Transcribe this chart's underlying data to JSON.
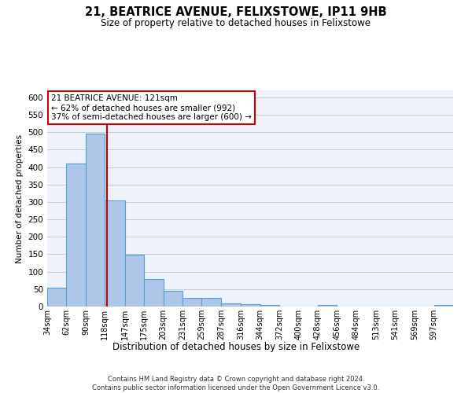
{
  "title": "21, BEATRICE AVENUE, FELIXSTOWE, IP11 9HB",
  "subtitle": "Size of property relative to detached houses in Felixstowe",
  "xlabel": "Distribution of detached houses by size in Felixstowe",
  "ylabel": "Number of detached properties",
  "bin_labels": [
    "34sqm",
    "62sqm",
    "90sqm",
    "118sqm",
    "147sqm",
    "175sqm",
    "203sqm",
    "231sqm",
    "259sqm",
    "287sqm",
    "316sqm",
    "344sqm",
    "372sqm",
    "400sqm",
    "428sqm",
    "456sqm",
    "484sqm",
    "513sqm",
    "541sqm",
    "569sqm",
    "597sqm"
  ],
  "bin_edges": [
    34,
    62,
    90,
    118,
    147,
    175,
    203,
    231,
    259,
    287,
    316,
    344,
    372,
    400,
    428,
    456,
    484,
    513,
    541,
    569,
    597,
    625
  ],
  "counts": [
    55,
    410,
    495,
    305,
    148,
    80,
    45,
    24,
    24,
    10,
    7,
    5,
    0,
    0,
    5,
    0,
    0,
    0,
    0,
    0,
    5
  ],
  "bar_color": "#aec6e8",
  "bar_edgecolor": "#5a9fd4",
  "bar_linewidth": 0.8,
  "vline_x": 121,
  "vline_color": "#cc0000",
  "vline_linewidth": 1.5,
  "annotation_text": "21 BEATRICE AVENUE: 121sqm\n← 62% of detached houses are smaller (992)\n37% of semi-detached houses are larger (600) →",
  "annotation_box_edgecolor": "#cc0000",
  "annotation_box_facecolor": "#ffffff",
  "annotation_fontsize": 7.5,
  "ylim": [
    0,
    620
  ],
  "yticks": [
    0,
    50,
    100,
    150,
    200,
    250,
    300,
    350,
    400,
    450,
    500,
    550,
    600
  ],
  "grid_color": "#cccccc",
  "background_color": "#eef2fa",
  "footer_text": "Contains HM Land Registry data © Crown copyright and database right 2024.\nContains public sector information licensed under the Open Government Licence v3.0.",
  "title_fontsize": 10.5,
  "subtitle_fontsize": 8.5,
  "xlabel_fontsize": 8.5,
  "ylabel_fontsize": 7.5,
  "tick_fontsize": 7,
  "ytick_fontsize": 7.5
}
